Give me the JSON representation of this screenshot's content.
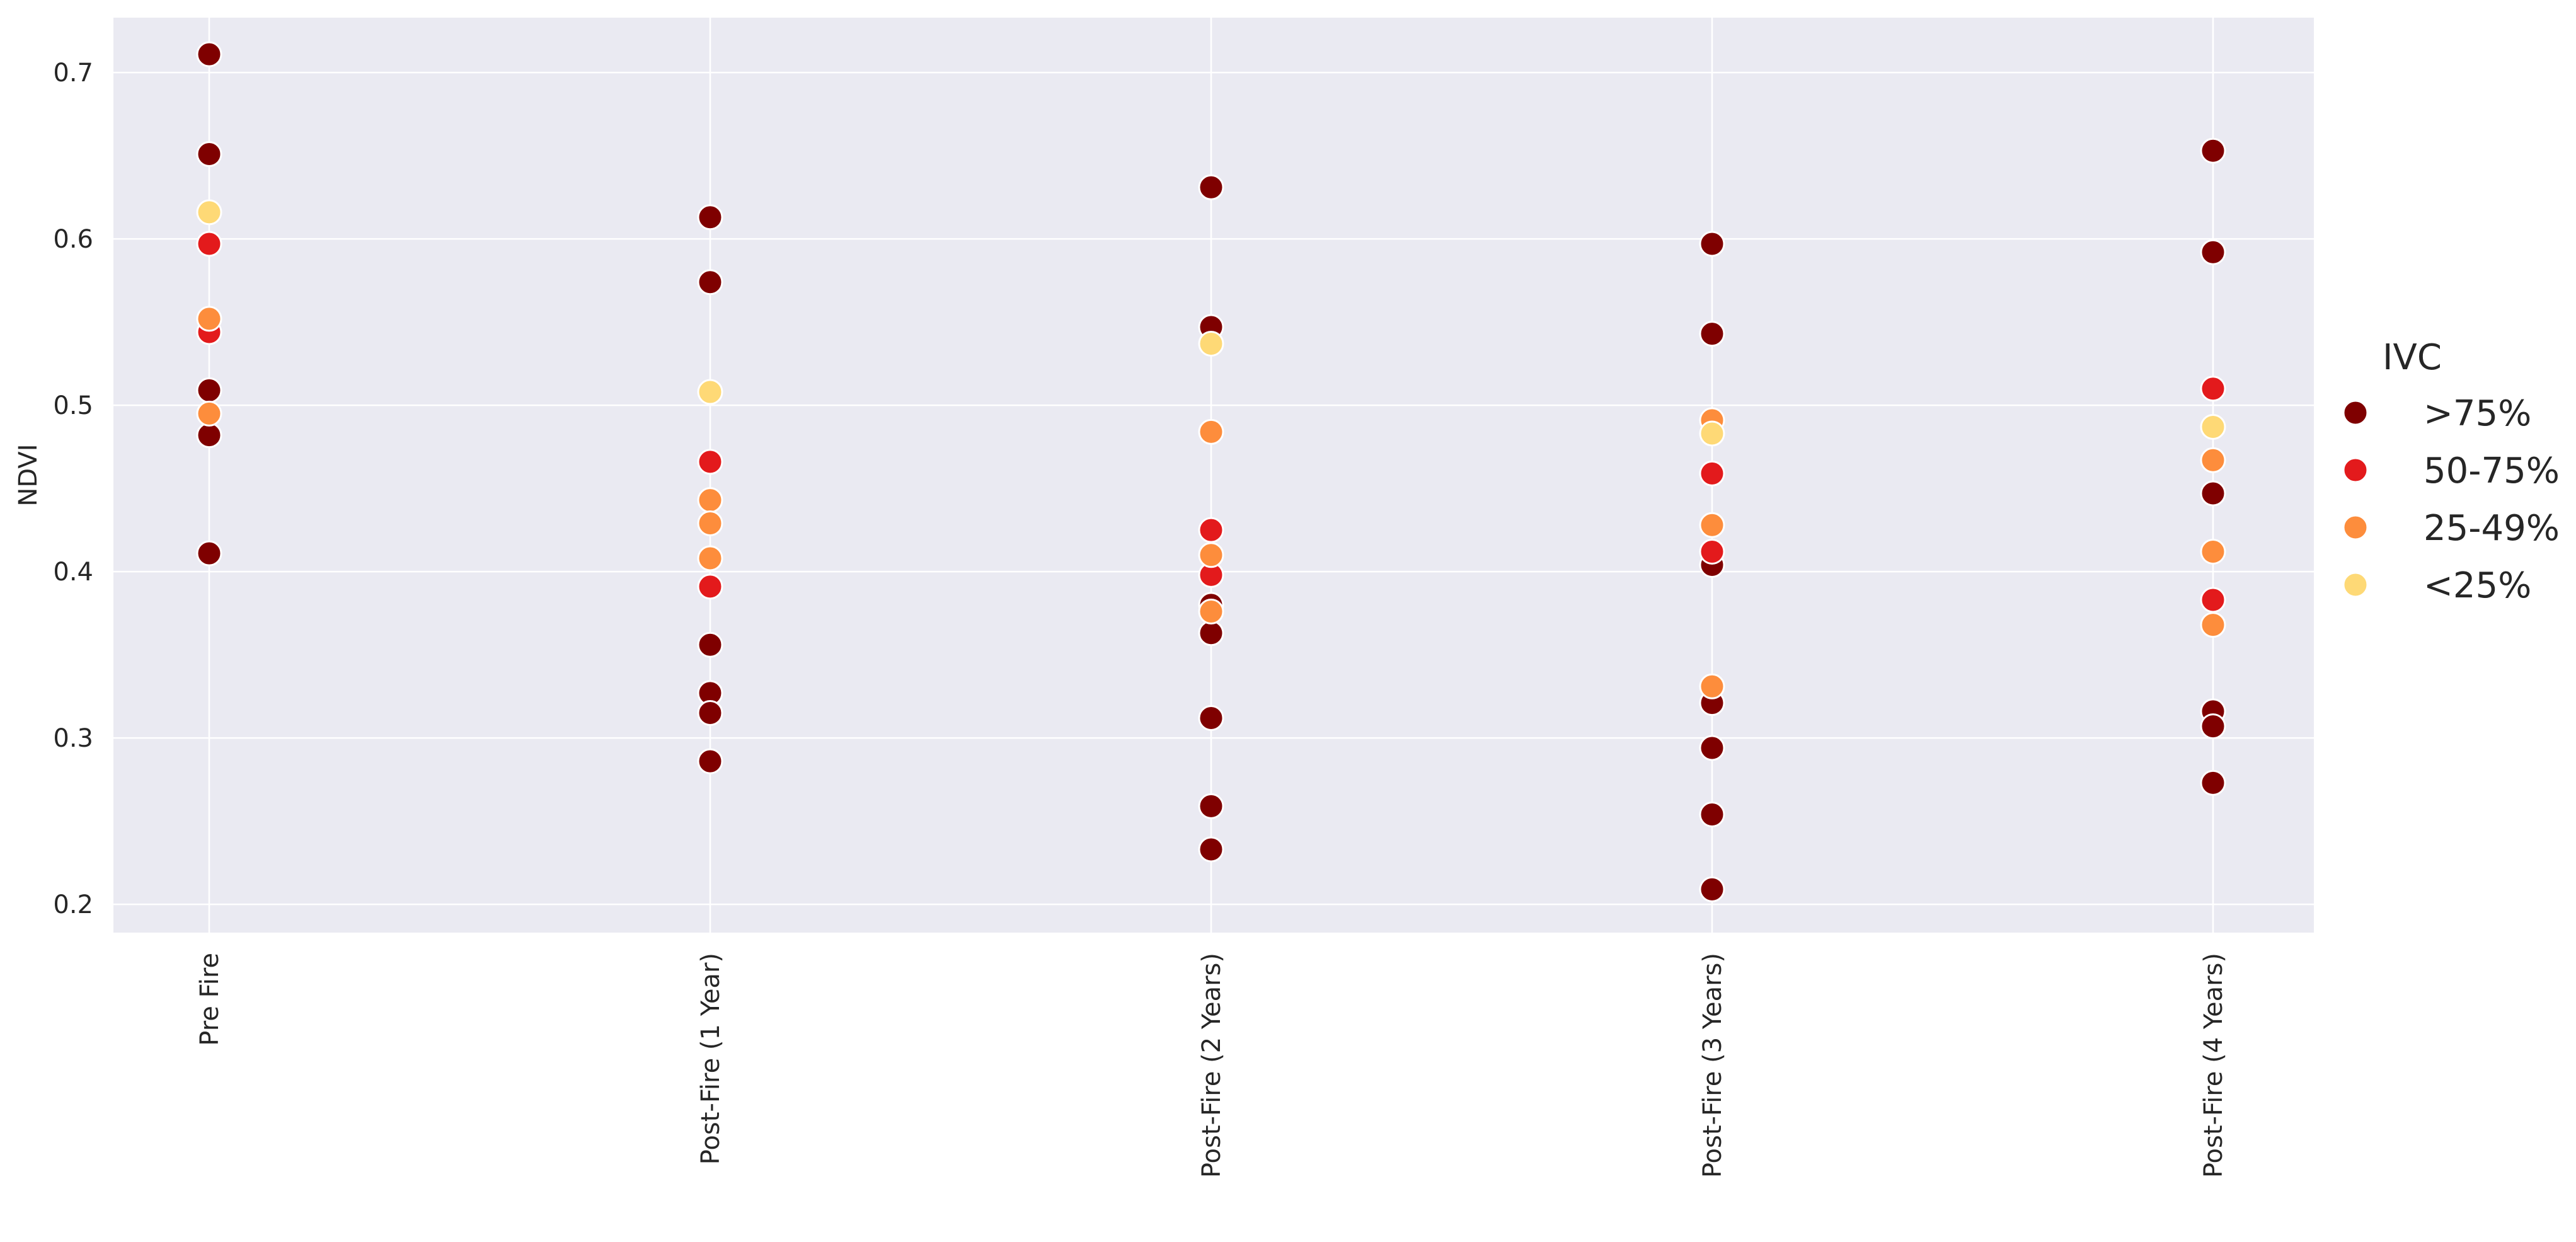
{
  "chart_data": {
    "type": "scatter",
    "title": "",
    "xlabel": "",
    "ylabel": "NDVI",
    "categories": [
      "Pre Fire",
      "Post-Fire (1 Year)",
      "Post-Fire (2 Years)",
      "Post-Fire (3 Years)",
      "Post-Fire (4 Years)"
    ],
    "ylim": [
      0.183,
      0.733
    ],
    "yticks": [
      "0.2",
      "0.3",
      "0.4",
      "0.5",
      "0.6",
      "0.7"
    ],
    "grid": true,
    "legend": {
      "title": "IVC",
      "placement": "right",
      "entries": [
        {
          "label": ">75%",
          "color": "#7f0000"
        },
        {
          "label": "50-75%",
          "color": "#e31a1c"
        },
        {
          "label": "25-49%",
          "color": "#fd8d3c"
        },
        {
          "label": "<25%",
          "color": "#fed976"
        }
      ]
    },
    "series": [
      {
        "name": ">75%",
        "color": "#7f0000",
        "points": [
          {
            "x": "Pre Fire",
            "y": 0.711
          },
          {
            "x": "Pre Fire",
            "y": 0.651
          },
          {
            "x": "Pre Fire",
            "y": 0.509
          },
          {
            "x": "Pre Fire",
            "y": 0.482
          },
          {
            "x": "Pre Fire",
            "y": 0.411
          },
          {
            "x": "Post-Fire (1 Year)",
            "y": 0.613
          },
          {
            "x": "Post-Fire (1 Year)",
            "y": 0.574
          },
          {
            "x": "Post-Fire (1 Year)",
            "y": 0.356
          },
          {
            "x": "Post-Fire (1 Year)",
            "y": 0.327
          },
          {
            "x": "Post-Fire (1 Year)",
            "y": 0.315
          },
          {
            "x": "Post-Fire (1 Year)",
            "y": 0.286
          },
          {
            "x": "Post-Fire (2 Years)",
            "y": 0.631
          },
          {
            "x": "Post-Fire (2 Years)",
            "y": 0.547
          },
          {
            "x": "Post-Fire (2 Years)",
            "y": 0.38
          },
          {
            "x": "Post-Fire (2 Years)",
            "y": 0.363
          },
          {
            "x": "Post-Fire (2 Years)",
            "y": 0.312
          },
          {
            "x": "Post-Fire (2 Years)",
            "y": 0.259
          },
          {
            "x": "Post-Fire (2 Years)",
            "y": 0.233
          },
          {
            "x": "Post-Fire (3 Years)",
            "y": 0.597
          },
          {
            "x": "Post-Fire (3 Years)",
            "y": 0.543
          },
          {
            "x": "Post-Fire (3 Years)",
            "y": 0.404
          },
          {
            "x": "Post-Fire (3 Years)",
            "y": 0.321
          },
          {
            "x": "Post-Fire (3 Years)",
            "y": 0.294
          },
          {
            "x": "Post-Fire (3 Years)",
            "y": 0.254
          },
          {
            "x": "Post-Fire (3 Years)",
            "y": 0.209
          },
          {
            "x": "Post-Fire (4 Years)",
            "y": 0.653
          },
          {
            "x": "Post-Fire (4 Years)",
            "y": 0.592
          },
          {
            "x": "Post-Fire (4 Years)",
            "y": 0.447
          },
          {
            "x": "Post-Fire (4 Years)",
            "y": 0.316
          },
          {
            "x": "Post-Fire (4 Years)",
            "y": 0.307
          },
          {
            "x": "Post-Fire (4 Years)",
            "y": 0.273
          }
        ]
      },
      {
        "name": "50-75%",
        "color": "#e31a1c",
        "points": [
          {
            "x": "Pre Fire",
            "y": 0.597
          },
          {
            "x": "Pre Fire",
            "y": 0.544
          },
          {
            "x": "Post-Fire (1 Year)",
            "y": 0.466
          },
          {
            "x": "Post-Fire (1 Year)",
            "y": 0.391
          },
          {
            "x": "Post-Fire (2 Years)",
            "y": 0.425
          },
          {
            "x": "Post-Fire (2 Years)",
            "y": 0.398
          },
          {
            "x": "Post-Fire (3 Years)",
            "y": 0.459
          },
          {
            "x": "Post-Fire (3 Years)",
            "y": 0.412
          },
          {
            "x": "Post-Fire (4 Years)",
            "y": 0.51
          },
          {
            "x": "Post-Fire (4 Years)",
            "y": 0.383
          }
        ]
      },
      {
        "name": "25-49%",
        "color": "#fd8d3c",
        "points": [
          {
            "x": "Pre Fire",
            "y": 0.552
          },
          {
            "x": "Pre Fire",
            "y": 0.495
          },
          {
            "x": "Post-Fire (1 Year)",
            "y": 0.443
          },
          {
            "x": "Post-Fire (1 Year)",
            "y": 0.429
          },
          {
            "x": "Post-Fire (1 Year)",
            "y": 0.408
          },
          {
            "x": "Post-Fire (2 Years)",
            "y": 0.484
          },
          {
            "x": "Post-Fire (2 Years)",
            "y": 0.41
          },
          {
            "x": "Post-Fire (2 Years)",
            "y": 0.376
          },
          {
            "x": "Post-Fire (3 Years)",
            "y": 0.491
          },
          {
            "x": "Post-Fire (3 Years)",
            "y": 0.428
          },
          {
            "x": "Post-Fire (3 Years)",
            "y": 0.331
          },
          {
            "x": "Post-Fire (4 Years)",
            "y": 0.467
          },
          {
            "x": "Post-Fire (4 Years)",
            "y": 0.412
          },
          {
            "x": "Post-Fire (4 Years)",
            "y": 0.368
          }
        ]
      },
      {
        "name": "<25%",
        "color": "#fed976",
        "points": [
          {
            "x": "Pre Fire",
            "y": 0.616
          },
          {
            "x": "Post-Fire (1 Year)",
            "y": 0.508
          },
          {
            "x": "Post-Fire (2 Years)",
            "y": 0.537
          },
          {
            "x": "Post-Fire (3 Years)",
            "y": 0.483
          },
          {
            "x": "Post-Fire (4 Years)",
            "y": 0.487
          }
        ]
      }
    ]
  },
  "colors": {
    "plot_background": "#eaeaf2",
    "grid": "#ffffff",
    "text": "#262626"
  }
}
